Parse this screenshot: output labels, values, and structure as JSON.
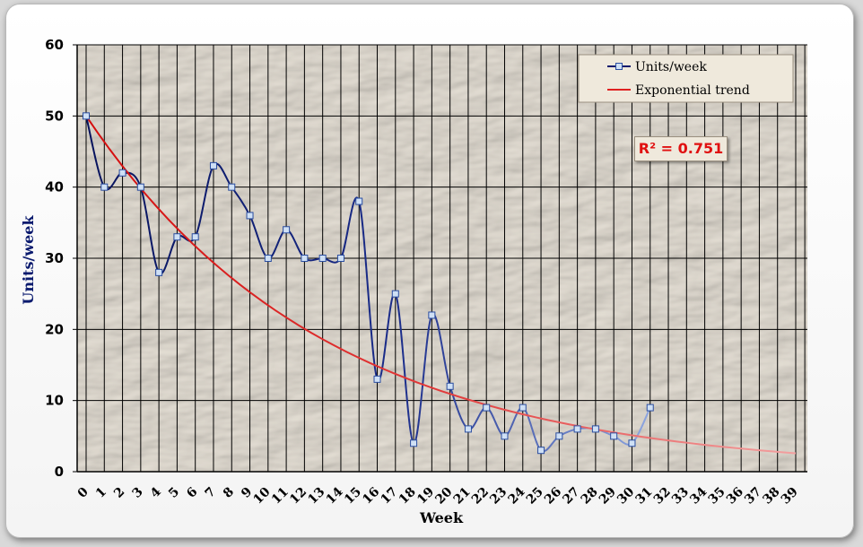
{
  "chart_data": {
    "type": "line",
    "title": "",
    "xlabel": "Week",
    "ylabel": "Units/week",
    "x": [
      0,
      1,
      2,
      3,
      4,
      5,
      6,
      7,
      8,
      9,
      10,
      11,
      12,
      13,
      14,
      15,
      16,
      17,
      18,
      19,
      20,
      21,
      22,
      23,
      24,
      25,
      26,
      27,
      28,
      29,
      30,
      31
    ],
    "x_ticks": [
      0,
      1,
      2,
      3,
      4,
      5,
      6,
      7,
      8,
      9,
      10,
      11,
      12,
      13,
      14,
      15,
      16,
      17,
      18,
      19,
      20,
      21,
      22,
      23,
      24,
      25,
      26,
      27,
      28,
      29,
      30,
      31,
      32,
      33,
      34,
      35,
      36,
      37,
      38,
      39
    ],
    "xlim": [
      0,
      39
    ],
    "ylim": [
      0,
      60
    ],
    "y_ticks": [
      0,
      10,
      20,
      30,
      40,
      50,
      60
    ],
    "grid": true,
    "legend_position": "top-right",
    "series": [
      {
        "name": "Units/week",
        "color": "#0a1a6e",
        "marker": "square",
        "values": [
          50,
          40,
          42,
          40,
          28,
          33,
          33,
          43,
          40,
          36,
          30,
          34,
          30,
          30,
          30,
          38,
          13,
          25,
          4,
          22,
          12,
          6,
          9,
          5,
          9,
          3,
          5,
          6,
          6,
          5,
          4,
          9
        ]
      },
      {
        "name": "Exponential trend",
        "color": "#e02020",
        "trend": {
          "a": 50,
          "b": 0.076,
          "x_range": [
            0,
            39
          ]
        }
      }
    ],
    "annotations": [
      {
        "text": "R² = 0.751",
        "color": "#e01010"
      }
    ]
  }
}
